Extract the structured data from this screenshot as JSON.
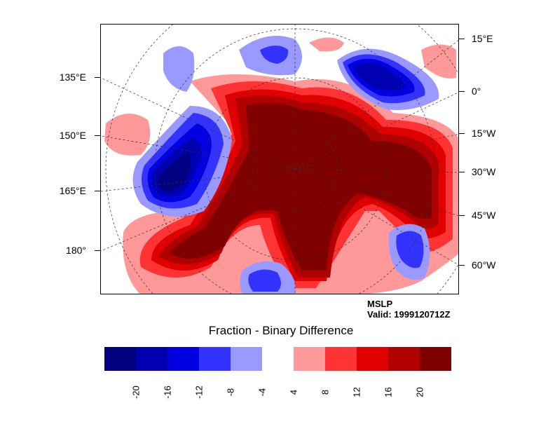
{
  "map": {
    "left_labels": [
      "135°E",
      "150°E",
      "165°E",
      "180°"
    ],
    "right_labels": [
      "15°E",
      "0°",
      "15°W",
      "30°W",
      "45°W",
      "60°W"
    ]
  },
  "annotation": {
    "variable": "MSLP",
    "valid": "Valid: 1999120712Z"
  },
  "colorbar": {
    "title": "Fraction - Binary Difference",
    "colors": [
      "#000080",
      "#0000b0",
      "#0000e0",
      "#3333ff",
      "#9999ff",
      "#ffffff",
      "#ff9999",
      "#ff3333",
      "#e00000",
      "#b00000",
      "#800000"
    ],
    "labels": [
      "-20",
      "-16",
      "-12",
      "-8",
      "-4",
      "4",
      "8",
      "12",
      "16",
      "20"
    ]
  }
}
